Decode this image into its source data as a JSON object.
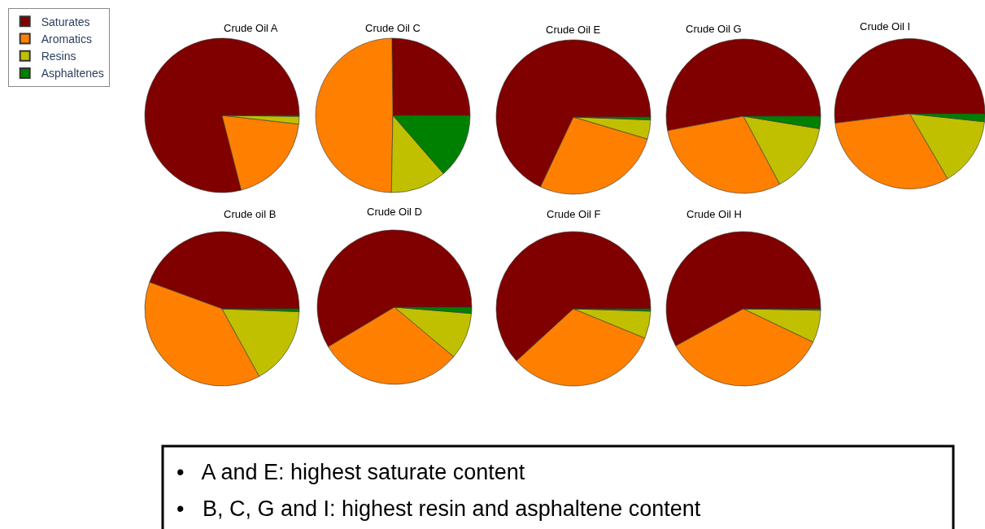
{
  "chart_data": [
    {
      "type": "pie",
      "title": "Crude Oil A",
      "categories": [
        "Saturates",
        "Aromatics",
        "Resins",
        "Asphaltenes"
      ],
      "values": [
        79,
        19.2,
        1.6,
        0.2
      ],
      "colors": [
        "#800000",
        "#ff8000",
        "#c0c000",
        "#008000"
      ],
      "legend": "top left"
    },
    {
      "type": "pie",
      "title": "Crude Oil C",
      "categories": [
        null,
        null,
        null,
        null
      ],
      "values": [
        25.2,
        49.5,
        11.7,
        13.6
      ],
      "colors": [
        "#800000",
        "#ff8000",
        "#c0c000",
        "#008000"
      ]
    },
    {
      "type": "pie",
      "title": "Crude Oil E",
      "categories": [
        null,
        null,
        null,
        null
      ],
      "values": [
        68,
        27.4,
        4,
        0.6
      ],
      "colors": [
        "#800000",
        "#ff8000",
        "#c0c000",
        "#008000"
      ]
    },
    {
      "type": "pie",
      "title": "Crude Oil G",
      "categories": [
        null,
        null,
        null,
        null
      ],
      "values": [
        53,
        29.8,
        14.6,
        2.6
      ],
      "colors": [
        "#800000",
        "#ff8000",
        "#c0c000",
        "#008000"
      ]
    },
    {
      "type": "pie",
      "title": "Crude Oil I",
      "categories": [
        null,
        null,
        null,
        null
      ],
      "values": [
        52,
        31.4,
        14.9,
        1.7
      ],
      "colors": [
        "#800000",
        "#ff8000",
        "#c0c000",
        "#008000"
      ]
    },
    {
      "type": "pie",
      "title": "Crude oil B",
      "categories": [
        null,
        null,
        null,
        null
      ],
      "values": [
        44.4,
        38.6,
        16.4,
        0.6
      ],
      "colors": [
        "#800000",
        "#ff8000",
        "#c0c000",
        "#008000"
      ]
    },
    {
      "type": "pie",
      "title": "Crude Oil D",
      "categories": [
        null,
        null,
        null,
        null
      ],
      "values": [
        58.6,
        30.3,
        9.8,
        1.3
      ],
      "colors": [
        "#800000",
        "#ff8000",
        "#c0c000",
        "#008000"
      ]
    },
    {
      "type": "pie",
      "title": "Crude Oil F",
      "categories": [
        null,
        null,
        null,
        null
      ],
      "values": [
        61.8,
        32,
        5.7,
        0.5
      ],
      "colors": [
        "#800000",
        "#ff8000",
        "#c0c000",
        "#008000"
      ]
    },
    {
      "type": "pie",
      "title": "Crude Oil H",
      "categories": [
        null,
        null,
        null,
        null
      ],
      "values": [
        58,
        34.9,
        6.8,
        0.3
      ],
      "colors": [
        "#800000",
        "#ff8000",
        "#c0c000",
        "#008000"
      ]
    },
    {
      "type": "other",
      "annotations": [
        "•   A and E: highest saturate content",
        "•   B, C, G and I: highest resin and asphaltene content"
      ]
    }
  ]
}
